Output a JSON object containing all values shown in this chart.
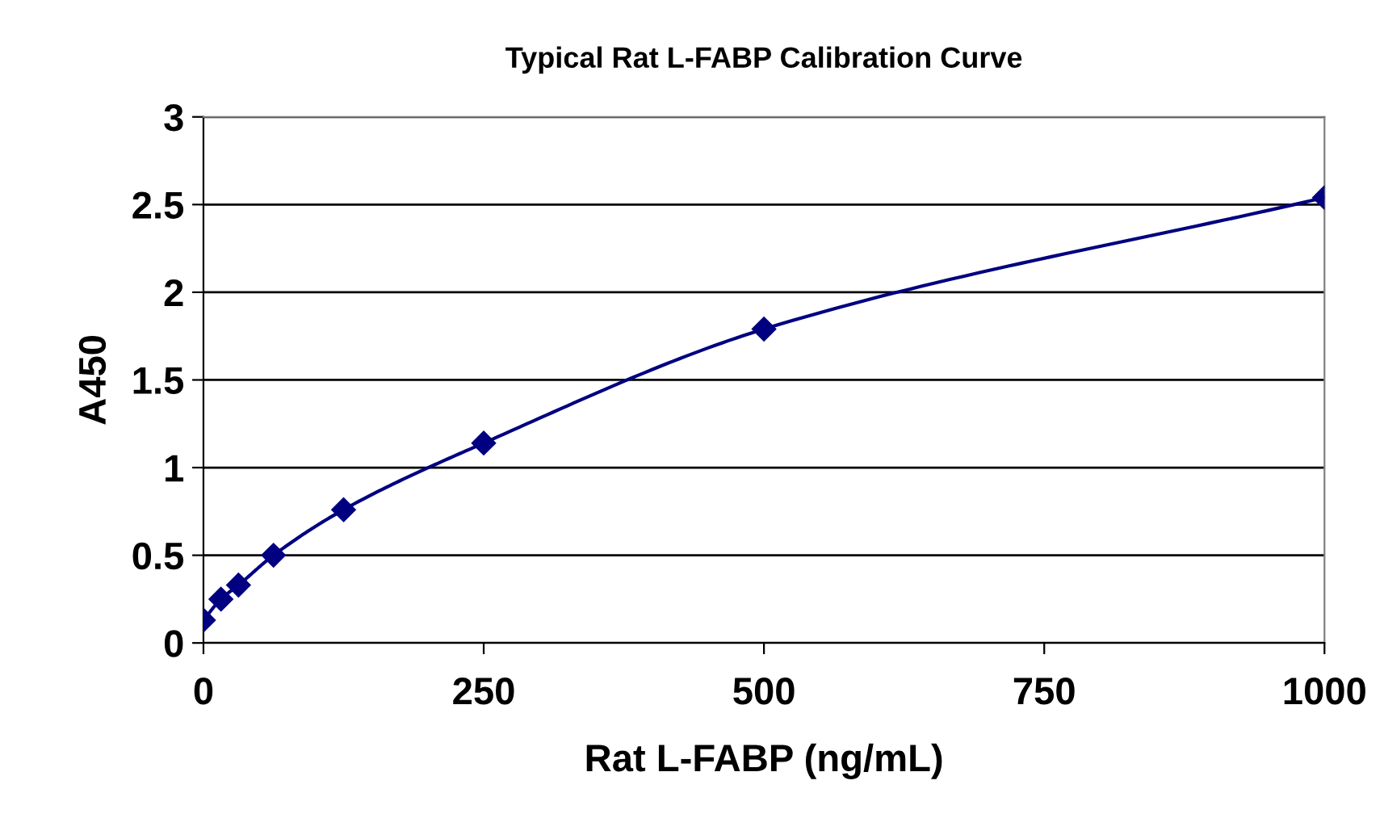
{
  "chart_data": {
    "type": "line",
    "title": "Typical Rat L-FABP Calibration Curve",
    "xlabel": "Rat L-FABP (ng/mL)",
    "ylabel": "A450",
    "series": [
      {
        "color": "#000080",
        "x": [
          0,
          15.6,
          31.25,
          62.5,
          125,
          250,
          500,
          1000
        ],
        "values": [
          0.13,
          0.25,
          0.33,
          0.5,
          0.76,
          1.14,
          1.79,
          2.54
        ]
      }
    ],
    "xlim": [
      0,
      1000
    ],
    "xticks": [
      0,
      250,
      500,
      750,
      1000
    ],
    "ylim": [
      0,
      3
    ],
    "yticks": [
      0,
      0.5,
      1,
      1.5,
      2,
      2.5,
      3
    ],
    "grid": "y",
    "marker": "diamond",
    "line_style": "solid",
    "legend": false
  }
}
